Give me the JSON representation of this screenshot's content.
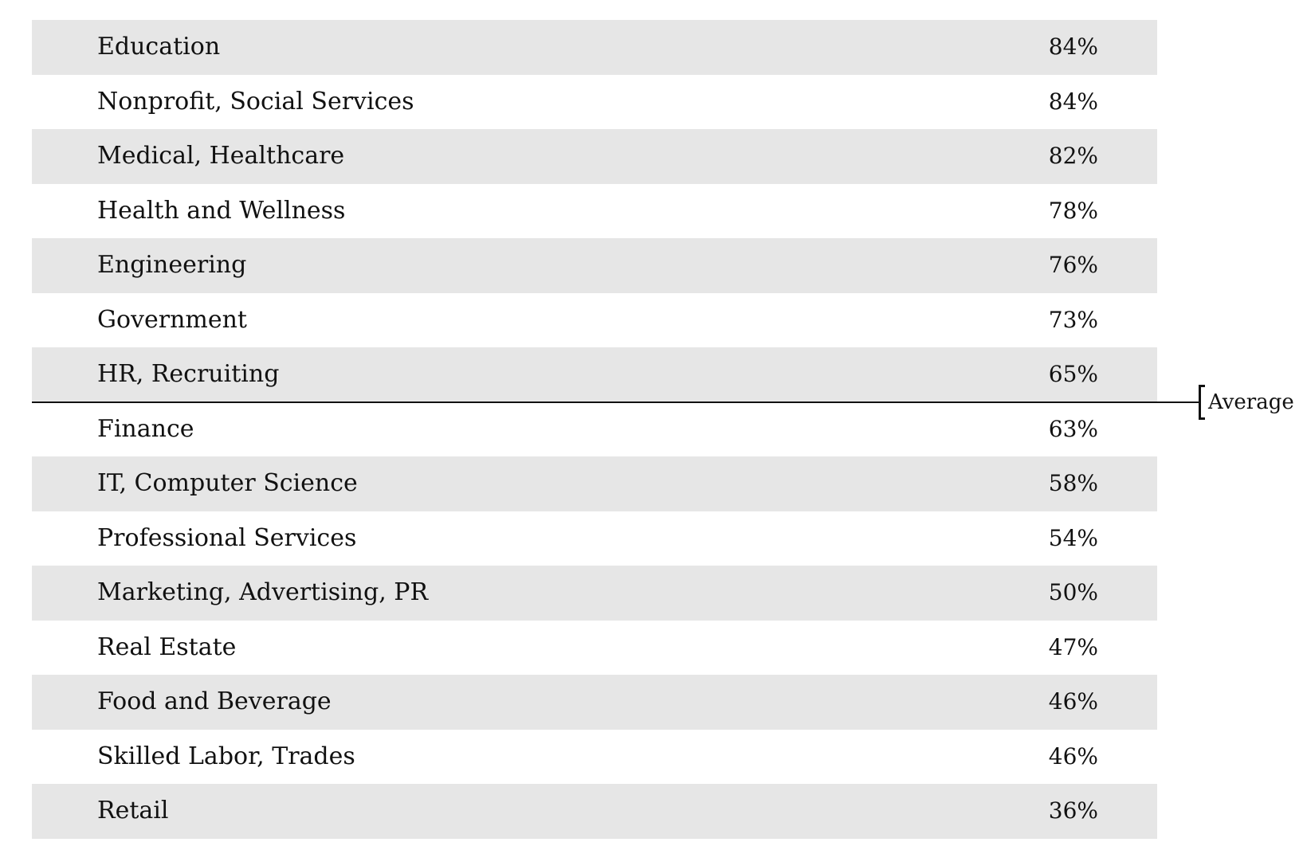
{
  "chart_data": {
    "type": "table",
    "categories": [
      "Education",
      "Nonprofit, Social Services",
      "Medical, Healthcare",
      "Health and Wellness",
      "Engineering",
      "Government",
      "HR, Recruiting",
      "Finance",
      "IT, Computer Science",
      "Professional Services",
      "Marketing, Advertising, PR",
      "Real Estate",
      "Food and Beverage",
      "Skilled Labor, Trades",
      "Retail"
    ],
    "values": [
      "84%",
      "84%",
      "82%",
      "78%",
      "76%",
      "73%",
      "65%",
      "63%",
      "58%",
      "54%",
      "50%",
      "47%",
      "46%",
      "46%",
      "36%"
    ],
    "average_annotation": {
      "label": "Average",
      "after_category": "HR, Recruiting"
    },
    "row_shading": [
      "#e6e6e6",
      "#ffffff"
    ],
    "line_color": "#111111"
  }
}
